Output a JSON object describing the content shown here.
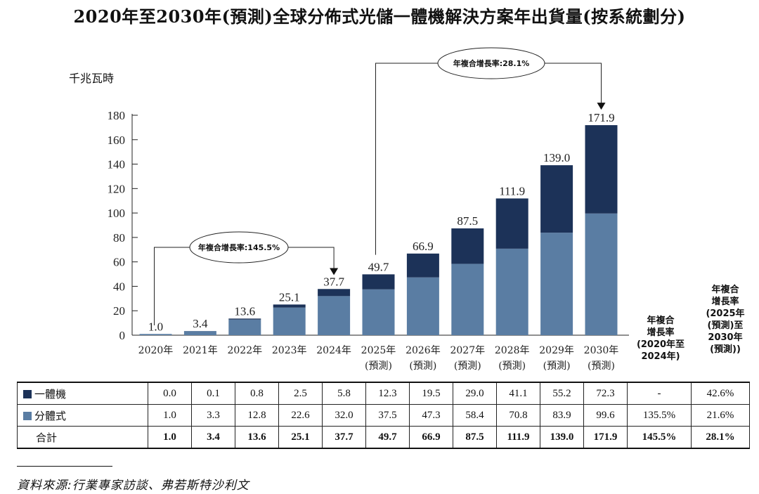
{
  "title": "2020年至2030年(預測)全球分佈式光儲一體機解決方案年出貨量(按系統劃分)",
  "unit": "千兆瓦時",
  "colors": {
    "integrated": "#1c3258",
    "split": "#5a7da3",
    "border": "#111111"
  },
  "chart_data": {
    "type": "bar",
    "stacked": true,
    "categories": [
      "2020年",
      "2021年",
      "2022年",
      "2023年",
      "2024年",
      "2025年\n(預測)",
      "2026年\n(預測)",
      "2027年\n(預測)",
      "2028年\n(預測)",
      "2029年\n(預測)",
      "2030年\n(預測)"
    ],
    "series": [
      {
        "name": "分體式",
        "values": [
          1.0,
          3.3,
          12.8,
          22.6,
          32.0,
          37.5,
          47.3,
          58.4,
          70.8,
          83.9,
          99.6
        ]
      },
      {
        "name": "一體機",
        "values": [
          0.0,
          0.1,
          0.8,
          2.5,
          5.8,
          12.3,
          19.5,
          29.0,
          41.1,
          55.2,
          72.3
        ]
      }
    ],
    "totals": [
      "1.0",
      "3.4",
      "13.6",
      "25.1",
      "37.7",
      "49.7",
      "66.9",
      "87.5",
      "111.9",
      "139.0",
      "171.9"
    ],
    "ylim": [
      0,
      180
    ],
    "yticks": [
      0,
      20,
      40,
      60,
      80,
      100,
      120,
      140,
      160,
      180
    ],
    "ylabel": "千兆瓦時",
    "annotations": [
      {
        "text": "年複合增長率:145.5%",
        "from": "2020年",
        "to": "2024年"
      },
      {
        "text": "年複合增長率:28.1%",
        "from": "2025年",
        "to": "2030年"
      }
    ]
  },
  "cagr_headers": [
    [
      "年複合",
      "增長率",
      "(2020年至",
      "2024年)"
    ],
    [
      "年複合",
      "增長率",
      "(2025年",
      "(預測)至",
      "2030年",
      "(預測))"
    ]
  ],
  "table": {
    "rows": [
      {
        "label": "一體機",
        "values": [
          "0.0",
          "0.1",
          "0.8",
          "2.5",
          "5.8",
          "12.3",
          "19.5",
          "29.0",
          "41.1",
          "55.2",
          "72.3",
          "-",
          "42.6%"
        ]
      },
      {
        "label": "分體式",
        "values": [
          "1.0",
          "3.3",
          "12.8",
          "22.6",
          "32.0",
          "37.5",
          "47.3",
          "58.4",
          "70.8",
          "83.9",
          "99.6",
          "135.5%",
          "21.6%"
        ]
      },
      {
        "label": "合計",
        "values": [
          "1.0",
          "3.4",
          "13.6",
          "25.1",
          "37.7",
          "49.7",
          "66.9",
          "87.5",
          "111.9",
          "139.0",
          "171.9",
          "145.5%",
          "28.1%"
        ]
      }
    ]
  },
  "source": "資料來源:行業專家訪談、弗若斯特沙利文"
}
